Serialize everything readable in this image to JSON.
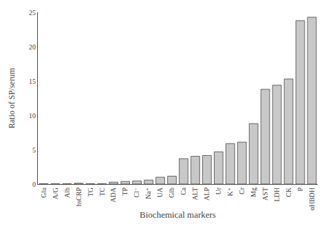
{
  "chart_data": {
    "type": "bar",
    "categories": [
      "Glu",
      "A/G",
      "Alb",
      "hsCRP",
      "TG",
      "TC",
      "ADA",
      "TP",
      "Cl⁻",
      "Na⁺",
      "UA",
      "Glb",
      "Ca",
      "ALT",
      "ALP",
      "Ur",
      "K⁺",
      "Cr",
      "Mg",
      "AST",
      "LDH",
      "CK",
      "P",
      "αHBDH"
    ],
    "values": [
      0.04,
      0.04,
      0.04,
      0.12,
      0.04,
      0.04,
      0.28,
      0.38,
      0.45,
      0.58,
      1.0,
      1.15,
      3.7,
      4.05,
      4.15,
      4.7,
      5.9,
      6.1,
      8.8,
      13.8,
      14.4,
      15.3,
      23.8,
      24.3
    ],
    "color": "#c8c8c8",
    "xlabel": "Biochemical markers",
    "ylabel": "Ratio of SP/serum",
    "ylim": [
      0,
      25
    ],
    "yticks": [
      0,
      5,
      10,
      15,
      20,
      25
    ],
    "grid": false
  }
}
